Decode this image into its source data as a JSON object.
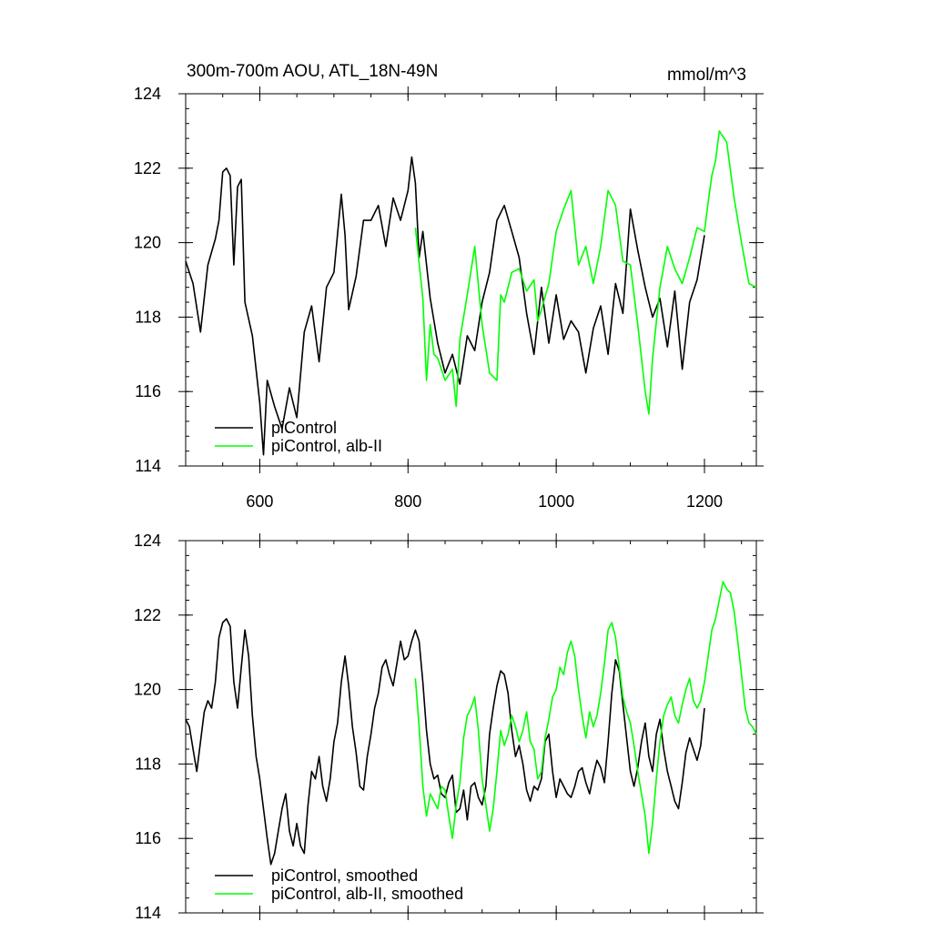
{
  "chart_data": [
    {
      "type": "line",
      "title": "300m-700m AOU, ATL_18N-49N",
      "units": "mmol/m^3",
      "xlim": [
        500,
        1270
      ],
      "ylim": [
        114,
        124
      ],
      "x_ticks": [
        600,
        800,
        1000,
        1200
      ],
      "x_tick_labels": [
        "600",
        "800",
        "1000",
        "1200"
      ],
      "x_minor_step": 50,
      "y_ticks": [
        114,
        116,
        118,
        120,
        122,
        124
      ],
      "y_tick_labels": [
        "114",
        "116",
        "118",
        "120",
        "122",
        "124"
      ],
      "y_minor_step": 0.4,
      "legend_position": "bottom-left",
      "series": [
        {
          "name": "piControl",
          "color": "#000000",
          "x": [
            500,
            510,
            520,
            530,
            540,
            545,
            550,
            555,
            560,
            565,
            570,
            575,
            580,
            590,
            600,
            605,
            610,
            620,
            630,
            640,
            650,
            660,
            670,
            680,
            690,
            700,
            710,
            715,
            720,
            730,
            740,
            750,
            760,
            770,
            780,
            790,
            800,
            805,
            810,
            815,
            820,
            830,
            840,
            850,
            860,
            870,
            880,
            890,
            900,
            910,
            920,
            930,
            940,
            950,
            960,
            970,
            980,
            990,
            1000,
            1010,
            1020,
            1030,
            1040,
            1050,
            1060,
            1070,
            1080,
            1090,
            1100,
            1110,
            1120,
            1130,
            1140,
            1150,
            1160,
            1170,
            1180,
            1190,
            1200
          ],
          "values": [
            119.5,
            118.9,
            117.6,
            119.4,
            120.1,
            120.6,
            121.9,
            122.0,
            121.8,
            119.4,
            121.5,
            121.7,
            118.4,
            117.5,
            115.7,
            114.3,
            116.3,
            115.6,
            115.0,
            116.1,
            115.3,
            117.6,
            118.3,
            116.8,
            118.8,
            119.2,
            121.3,
            120.2,
            118.2,
            119.1,
            120.6,
            120.6,
            121.0,
            119.9,
            121.2,
            120.6,
            121.4,
            122.3,
            121.6,
            119.6,
            120.3,
            118.5,
            117.3,
            116.5,
            117.0,
            116.2,
            117.5,
            117.1,
            118.4,
            119.2,
            120.6,
            121.0,
            120.3,
            119.6,
            118.1,
            117.0,
            118.8,
            117.3,
            118.6,
            117.4,
            117.9,
            117.6,
            116.5,
            117.7,
            118.3,
            117.0,
            118.9,
            118.1,
            120.9,
            119.8,
            118.8,
            118.0,
            118.5,
            117.2,
            118.7,
            116.6,
            118.4,
            119.0,
            120.2
          ]
        },
        {
          "name": "piControl, alb-II",
          "color": "#00ff00",
          "x": [
            810,
            820,
            825,
            830,
            835,
            840,
            850,
            860,
            865,
            870,
            880,
            890,
            900,
            910,
            920,
            925,
            930,
            940,
            950,
            960,
            970,
            975,
            980,
            990,
            1000,
            1010,
            1020,
            1030,
            1040,
            1050,
            1060,
            1070,
            1080,
            1090,
            1100,
            1110,
            1120,
            1125,
            1130,
            1140,
            1150,
            1160,
            1170,
            1180,
            1190,
            1200,
            1205,
            1210,
            1215,
            1220,
            1230,
            1240,
            1250,
            1260,
            1270
          ],
          "values": [
            120.4,
            118.5,
            116.3,
            117.8,
            117.0,
            116.9,
            116.3,
            116.6,
            115.6,
            117.4,
            118.6,
            119.9,
            117.8,
            116.5,
            116.3,
            118.6,
            118.4,
            119.2,
            119.3,
            118.7,
            119.0,
            117.9,
            118.2,
            118.9,
            120.3,
            120.9,
            121.4,
            119.4,
            119.9,
            118.9,
            119.9,
            121.4,
            121.0,
            119.5,
            119.4,
            117.8,
            116.0,
            115.4,
            116.9,
            118.8,
            119.9,
            119.3,
            118.9,
            119.6,
            120.4,
            120.3,
            121.1,
            121.8,
            122.2,
            123.0,
            122.7,
            121.2,
            120.0,
            118.9,
            118.8
          ]
        }
      ]
    },
    {
      "type": "line",
      "title": "",
      "xlim": [
        500,
        1270
      ],
      "ylim": [
        114,
        124
      ],
      "x_ticks": [
        600,
        800,
        1000,
        1200
      ],
      "x_tick_labels": [],
      "x_minor_step": 50,
      "y_ticks": [
        114,
        116,
        118,
        120,
        122,
        124
      ],
      "y_tick_labels": [
        "114",
        "116",
        "118",
        "120",
        "122",
        "124"
      ],
      "y_minor_step": 0.4,
      "legend_position": "bottom-left",
      "series": [
        {
          "name": "piControl, smoothed",
          "color": "#000000",
          "x": [
            500,
            505,
            510,
            515,
            520,
            525,
            530,
            535,
            540,
            545,
            550,
            555,
            560,
            565,
            570,
            575,
            580,
            585,
            590,
            595,
            600,
            605,
            610,
            615,
            620,
            625,
            630,
            635,
            640,
            645,
            650,
            655,
            660,
            665,
            670,
            675,
            680,
            685,
            690,
            695,
            700,
            705,
            710,
            715,
            720,
            725,
            730,
            735,
            740,
            745,
            750,
            755,
            760,
            765,
            770,
            775,
            780,
            785,
            790,
            795,
            800,
            805,
            810,
            815,
            820,
            825,
            830,
            835,
            840,
            845,
            850,
            855,
            860,
            865,
            870,
            875,
            880,
            885,
            890,
            895,
            900,
            905,
            910,
            915,
            920,
            925,
            930,
            935,
            940,
            945,
            950,
            955,
            960,
            965,
            970,
            975,
            980,
            985,
            990,
            995,
            1000,
            1005,
            1010,
            1015,
            1020,
            1025,
            1030,
            1035,
            1040,
            1045,
            1050,
            1055,
            1060,
            1065,
            1070,
            1075,
            1080,
            1085,
            1090,
            1095,
            1100,
            1105,
            1110,
            1115,
            1120,
            1125,
            1130,
            1135,
            1140,
            1145,
            1150,
            1155,
            1160,
            1165,
            1170,
            1175,
            1180,
            1185,
            1190,
            1195,
            1200
          ],
          "values": [
            119.2,
            119.0,
            118.4,
            117.8,
            118.6,
            119.4,
            119.7,
            119.5,
            120.2,
            121.4,
            121.8,
            121.9,
            121.7,
            120.2,
            119.5,
            120.6,
            121.6,
            120.9,
            119.3,
            118.2,
            117.6,
            116.8,
            116.0,
            115.3,
            115.6,
            116.2,
            116.8,
            117.2,
            116.2,
            115.8,
            116.4,
            115.8,
            115.6,
            116.9,
            117.8,
            117.6,
            118.2,
            117.4,
            117.0,
            117.6,
            118.6,
            119.1,
            120.2,
            120.9,
            120.1,
            119.0,
            118.3,
            117.4,
            117.3,
            118.2,
            118.8,
            119.5,
            119.9,
            120.6,
            120.8,
            120.4,
            120.1,
            120.7,
            121.3,
            120.8,
            120.9,
            121.3,
            121.6,
            121.3,
            120.2,
            118.9,
            118.0,
            117.6,
            117.7,
            117.2,
            117.1,
            117.5,
            117.7,
            116.7,
            116.8,
            117.3,
            116.5,
            117.4,
            117.5,
            117.1,
            116.9,
            117.4,
            118.8,
            119.5,
            120.1,
            120.5,
            120.4,
            119.9,
            118.9,
            118.2,
            118.5,
            118.0,
            117.3,
            117.0,
            117.4,
            117.3,
            117.6,
            118.6,
            118.8,
            117.8,
            117.1,
            117.6,
            117.4,
            117.2,
            117.1,
            117.4,
            117.8,
            117.9,
            117.5,
            117.2,
            117.7,
            118.1,
            117.9,
            117.5,
            118.6,
            119.9,
            120.8,
            120.5,
            119.6,
            118.7,
            117.8,
            117.4,
            117.9,
            118.6,
            119.1,
            118.2,
            117.8,
            118.8,
            119.2,
            118.4,
            117.8,
            117.4,
            117.0,
            116.8,
            117.5,
            118.3,
            118.7,
            118.4,
            118.1,
            118.5,
            119.5
          ]
        },
        {
          "name": "piControl, alb-II, smoothed",
          "color": "#00ff00",
          "x": [
            810,
            815,
            820,
            825,
            830,
            835,
            840,
            845,
            850,
            855,
            860,
            865,
            870,
            875,
            880,
            885,
            890,
            895,
            900,
            905,
            910,
            915,
            920,
            925,
            930,
            935,
            940,
            945,
            950,
            955,
            960,
            965,
            970,
            975,
            980,
            985,
            990,
            995,
            1000,
            1005,
            1010,
            1015,
            1020,
            1025,
            1030,
            1035,
            1040,
            1045,
            1050,
            1055,
            1060,
            1065,
            1070,
            1075,
            1080,
            1085,
            1090,
            1095,
            1100,
            1105,
            1110,
            1115,
            1120,
            1125,
            1130,
            1135,
            1140,
            1145,
            1150,
            1155,
            1160,
            1165,
            1170,
            1175,
            1180,
            1185,
            1190,
            1195,
            1200,
            1205,
            1210,
            1215,
            1220,
            1225,
            1230,
            1235,
            1240,
            1245,
            1250,
            1255,
            1260,
            1265,
            1270
          ],
          "values": [
            120.3,
            119.0,
            117.4,
            116.6,
            117.2,
            117.0,
            116.8,
            117.4,
            117.3,
            116.6,
            116.0,
            116.9,
            117.5,
            118.7,
            119.3,
            119.5,
            119.8,
            118.9,
            117.6,
            116.9,
            116.2,
            116.8,
            117.8,
            118.9,
            118.5,
            118.8,
            119.3,
            119.0,
            118.6,
            118.9,
            119.4,
            118.6,
            118.4,
            117.6,
            117.8,
            118.7,
            119.2,
            119.8,
            120.0,
            120.6,
            120.4,
            121.0,
            121.3,
            120.9,
            120.0,
            119.3,
            118.7,
            119.4,
            119.0,
            119.3,
            119.9,
            120.7,
            121.6,
            121.8,
            121.4,
            120.6,
            119.8,
            119.4,
            119.1,
            118.5,
            117.8,
            117.2,
            116.6,
            115.6,
            116.4,
            117.6,
            118.6,
            119.3,
            119.6,
            119.8,
            119.3,
            119.1,
            119.6,
            120.0,
            120.3,
            119.7,
            119.5,
            119.7,
            120.2,
            120.9,
            121.6,
            121.9,
            122.4,
            122.9,
            122.7,
            122.6,
            122.1,
            121.3,
            120.4,
            119.5,
            119.1,
            119.0,
            118.8
          ]
        }
      ]
    }
  ]
}
